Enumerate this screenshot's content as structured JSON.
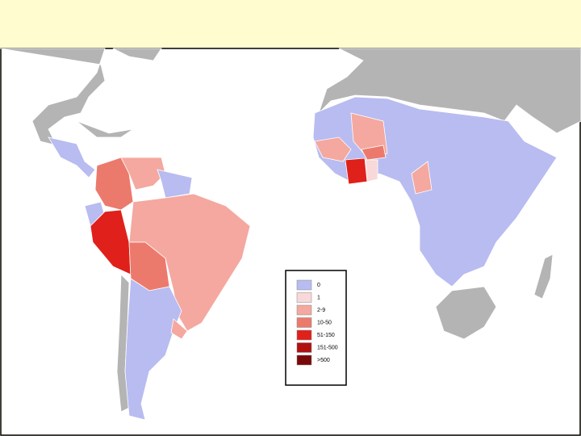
{
  "legend": {
    "items": [
      {
        "label": "0",
        "color": "#b8bcf0"
      },
      {
        "label": "1",
        "color": "#f8d8d8"
      },
      {
        "label": "2-9",
        "color": "#f4a8a0"
      },
      {
        "label": "10-50",
        "color": "#ec7a6c"
      },
      {
        "label": "51-150",
        "color": "#e0201a"
      },
      {
        "label": "151-500",
        "color": "#b01010"
      },
      {
        "label": ">500",
        "color": "#7a0808"
      }
    ]
  }
}
